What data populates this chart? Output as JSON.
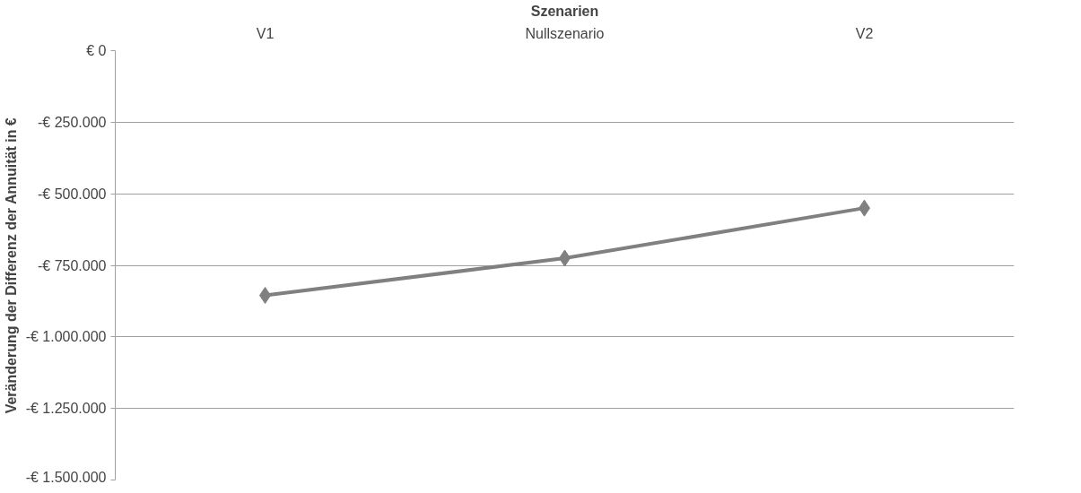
{
  "chart_data": {
    "type": "line",
    "xlabel": "Szenarien",
    "ylabel": "Veränderung der Differenz der Annuität in €",
    "categories": [
      "V1",
      "Nullszenario",
      "V2"
    ],
    "series": [
      {
        "color": "#808080",
        "values": [
          -855000,
          -725000,
          -550000
        ]
      }
    ],
    "ylim": [
      -1500000,
      0
    ],
    "yticks": [
      {
        "value": 0,
        "label": "€ 0"
      },
      {
        "value": -250000,
        "label": "-€ 250.000"
      },
      {
        "value": -500000,
        "label": "-€ 500.000"
      },
      {
        "value": -750000,
        "label": "-€ 750.000"
      },
      {
        "value": -1000000,
        "label": "-€ 1.000.000"
      },
      {
        "value": -1250000,
        "label": "-€ 1.250.000"
      },
      {
        "value": -1500000,
        "label": "-€ 1.500.000"
      }
    ],
    "grid": "y",
    "marker": "diamond",
    "line_style": "solid"
  }
}
